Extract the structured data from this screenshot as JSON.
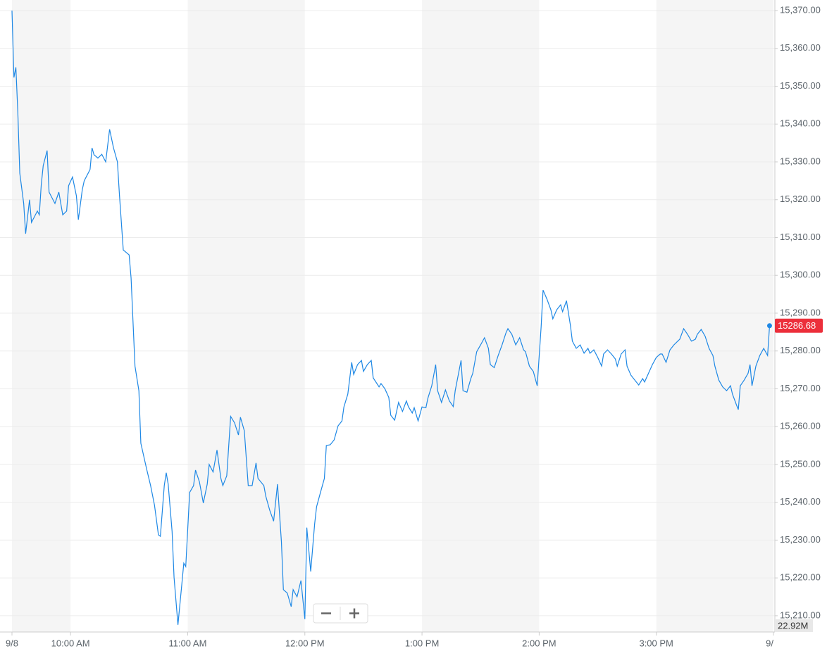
{
  "chart_data": {
    "type": "line",
    "x": [
      0,
      1,
      2,
      3,
      4,
      6,
      7,
      9,
      10,
      13,
      14,
      15,
      16,
      18,
      19,
      22,
      24,
      26,
      28,
      29,
      31,
      33,
      34,
      36,
      37,
      40,
      41,
      42,
      44,
      46,
      48,
      50,
      52,
      54,
      55,
      57,
      60,
      61,
      63,
      65,
      66,
      69,
      71,
      73,
      75,
      76,
      78,
      79,
      80,
      82,
      83,
      85,
      87,
      88,
      89,
      91,
      93,
      94,
      96,
      98,
      100,
      101,
      103,
      105,
      107,
      108,
      110,
      112,
      114,
      116,
      117,
      119,
      121,
      123,
      125,
      126,
      129,
      130,
      132,
      134,
      136,
      138,
      139,
      141,
      143,
      144,
      146,
      148,
      150,
      151,
      153,
      155,
      156,
      158,
      160,
      161,
      163,
      165,
      167,
      169,
      170,
      172,
      174,
      175,
      177,
      179,
      180,
      182,
      184,
      185,
      188,
      189,
      191,
      193,
      194,
      196,
      198,
      200,
      202,
      203,
      205,
      206,
      208,
      210,
      212,
      213,
      215,
      217,
      218,
      220,
      222,
      224,
      226,
      227,
      230,
      231,
      233,
      235,
      236,
      238,
      240,
      242,
      244,
      245,
      247,
      249,
      251,
      253,
      254,
      256,
      258,
      260,
      262,
      263,
      265,
      267,
      269,
      271,
      272,
      274,
      276,
      277,
      279,
      281,
      282,
      284,
      286,
      287,
      289,
      291,
      293,
      295,
      296,
      298,
      300,
      302,
      303,
      305,
      307,
      309,
      310,
      312,
      314,
      315,
      317,
      319,
      321,
      323,
      324,
      326,
      328,
      330,
      332,
      333,
      335,
      337,
      339,
      341,
      342,
      344,
      346,
      348,
      350,
      351,
      353,
      355,
      357,
      359,
      360,
      362,
      364,
      366,
      368,
      369,
      371,
      372,
      373,
      375,
      377,
      378,
      379,
      381,
      383,
      385,
      387,
      388
    ],
    "series": [
      {
        "color": "#1e88e5",
        "values": [
          15370,
          15352.3,
          15355,
          15343,
          15327,
          15319,
          15311,
          15320,
          15314,
          15317,
          15316,
          15324,
          15329,
          15333,
          15322,
          15319,
          15322,
          15316,
          15317,
          15323.7,
          15326,
          15321,
          15314.7,
          15322.6,
          15325,
          15328,
          15333.7,
          15331.9,
          15331,
          15332,
          15330,
          15338.6,
          15333.7,
          15330,
          15321.6,
          15306.7,
          15305.4,
          15299.3,
          15276,
          15269.5,
          15255.6,
          15248.7,
          15244.4,
          15239.2,
          15231.4,
          15231,
          15244.4,
          15247.8,
          15244.8,
          15232.3,
          15220.2,
          15207.6,
          15218.4,
          15223.9,
          15223,
          15242.6,
          15244.4,
          15248.5,
          15245.4,
          15239.8,
          15244.8,
          15250,
          15248,
          15253.8,
          15246.3,
          15244.4,
          15247,
          15262.7,
          15261,
          15257.8,
          15262.5,
          15258.9,
          15244.4,
          15244.4,
          15250.4,
          15246.3,
          15244.4,
          15241.6,
          15237.9,
          15235,
          15244.8,
          15229.5,
          15216.9,
          15216,
          15212.4,
          15216.9,
          15215,
          15219.3,
          15209.1,
          15233.3,
          15221.7,
          15234.2,
          15238.8,
          15242.6,
          15246.3,
          15255,
          15255.2,
          15256.5,
          15260.2,
          15261.5,
          15265.2,
          15268.6,
          15277,
          15273.8,
          15276.4,
          15277.5,
          15274.6,
          15276.4,
          15277.5,
          15272.9,
          15270.5,
          15271.4,
          15270,
          15267.7,
          15263,
          15261.7,
          15266.4,
          15264,
          15266.8,
          15265.3,
          15263.6,
          15265,
          15261.5,
          15265.2,
          15265,
          15267.5,
          15270.8,
          15276.4,
          15269.5,
          15266.4,
          15269.7,
          15266.8,
          15265.3,
          15269.5,
          15277.5,
          15269.5,
          15269.1,
          15272.7,
          15274.1,
          15279.8,
          15281.6,
          15283.5,
          15280.7,
          15276.4,
          15275.6,
          15278.8,
          15281.6,
          15284.8,
          15285.9,
          15284.4,
          15281.6,
          15283.5,
          15280.3,
          15279.8,
          15276,
          15274.6,
          15270.8,
          15286.3,
          15296.1,
          15293.7,
          15290.9,
          15288.5,
          15290.9,
          15292.2,
          15290.4,
          15293.3,
          15286.8,
          15282.6,
          15280.7,
          15281.6,
          15279.4,
          15280.7,
          15279.4,
          15280.3,
          15278.3,
          15276,
          15279.2,
          15280.3,
          15279.2,
          15277.9,
          15276,
          15279.2,
          15280.3,
          15276,
          15273.6,
          15272.3,
          15271,
          15272.7,
          15271.8,
          15274.1,
          15276.4,
          15278.3,
          15279.2,
          15279.2,
          15277,
          15280.3,
          15281.6,
          15282.6,
          15283.1,
          15285.9,
          15284.4,
          15282.6,
          15283.1,
          15284.4,
          15285.7,
          15283.9,
          15280.7,
          15278.8,
          15276,
          15272.3,
          15270.5,
          15269.5,
          15270.8,
          15268.6,
          15265.8,
          15264.5,
          15270.8,
          15272.3,
          15274.1,
          15276.4,
          15270.8,
          15276,
          15278.8,
          15280.7,
          15278.8,
          15286.68
        ]
      }
    ],
    "xlim": [
      0,
      390
    ],
    "xticks": [
      {
        "value": 0,
        "label": "9/8"
      },
      {
        "value": 30,
        "label": "10:00 AM"
      },
      {
        "value": 90,
        "label": "11:00 AM"
      },
      {
        "value": 150,
        "label": "12:00 PM"
      },
      {
        "value": 210,
        "label": "1:00 PM"
      },
      {
        "value": 270,
        "label": "2:00 PM"
      },
      {
        "value": 330,
        "label": "3:00 PM"
      },
      {
        "value": 390,
        "label": "9/"
      }
    ],
    "ylim": [
      15205.7,
      15372.8
    ],
    "yticks": [
      {
        "value": 15210,
        "label": "15,210.00"
      },
      {
        "value": 15220,
        "label": "15,220.00"
      },
      {
        "value": 15230,
        "label": "15,230.00"
      },
      {
        "value": 15240,
        "label": "15,240.00"
      },
      {
        "value": 15250,
        "label": "15,250.00"
      },
      {
        "value": 15260,
        "label": "15,260.00"
      },
      {
        "value": 15270,
        "label": "15,270.00"
      },
      {
        "value": 15280,
        "label": "15,280.00"
      },
      {
        "value": 15290,
        "label": "15,290.00"
      },
      {
        "value": 15300,
        "label": "15,300.00"
      },
      {
        "value": 15310,
        "label": "15,310.00"
      },
      {
        "value": 15320,
        "label": "15,320.00"
      },
      {
        "value": 15330,
        "label": "15,330.00"
      },
      {
        "value": 15340,
        "label": "15,340.00"
      },
      {
        "value": 15350,
        "label": "15,350.00"
      },
      {
        "value": 15360,
        "label": "15,360.00"
      },
      {
        "value": 15370,
        "label": "15,370.00"
      }
    ],
    "grid": true,
    "volume_label": "22.92M"
  }
}
